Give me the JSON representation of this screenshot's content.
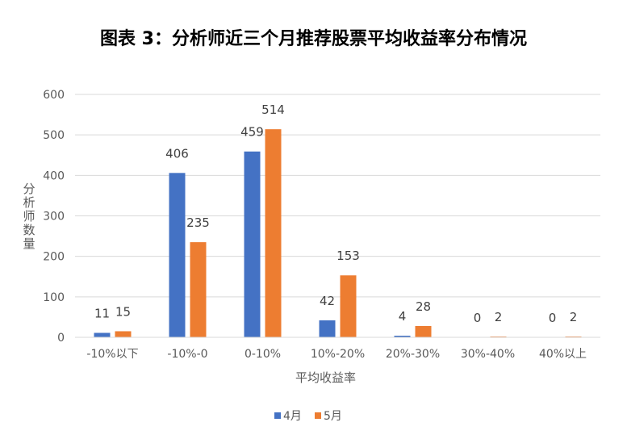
{
  "title": "图表 3：分析师近三个月推荐股票平均收益率分布情况",
  "chart_data": {
    "type": "bar",
    "title": "图表 3：分析师近三个月推荐股票平均收益率分布情况",
    "xlabel": "平均收益率",
    "ylabel": "分析师数量",
    "categories": [
      "-10%以下",
      "-10%-0",
      "0-10%",
      "10%-20%",
      "20%-30%",
      "30%-40%",
      "40%以上"
    ],
    "series": [
      {
        "name": "4月",
        "color": "#4472C4",
        "values": [
          11,
          406,
          459,
          42,
          4,
          0,
          0
        ]
      },
      {
        "name": "5月",
        "color": "#ED7D31",
        "values": [
          15,
          235,
          514,
          153,
          28,
          2,
          2
        ]
      }
    ],
    "ylim": [
      0,
      600
    ],
    "yticks": [
      0,
      100,
      200,
      300,
      400,
      500,
      600
    ],
    "grid": true,
    "legend_position": "bottom"
  }
}
